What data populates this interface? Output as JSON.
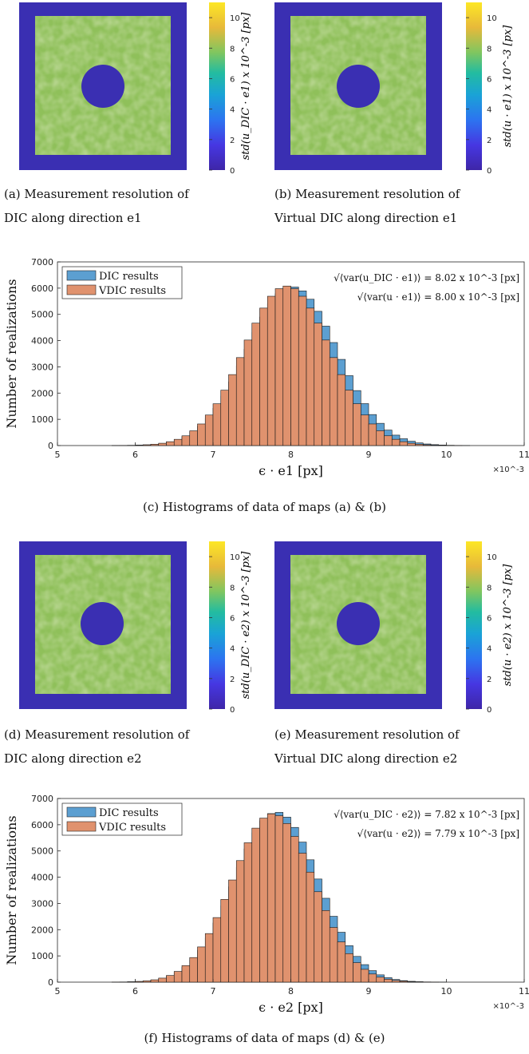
{
  "colors": {
    "border": "#3a2fb2",
    "hole": "#3a2fb2",
    "dic_bar": "#5c9fd1",
    "vdic_bar": "#e0926e",
    "bar_edge": "#1a1a1a",
    "colorbar_stops": [
      "#3e26a8",
      "#4637e2",
      "#2c74f0",
      "#1aa3d6",
      "#23bca0",
      "#7fc660",
      "#e7b93a",
      "#fde725"
    ]
  },
  "maps": [
    {
      "id": "a",
      "caption_line1": "(a)  Measurement  resolution  of",
      "caption_line2": "DIC along direction e1",
      "colorbar_label": "std(u_DIC · e1) x 10^-3 [px]",
      "colorbar_ticks": [
        "0",
        "2",
        "4",
        "6",
        "8",
        "10"
      ]
    },
    {
      "id": "b",
      "caption_line1": "(b)  Measurement  resolution  of",
      "caption_line2": "Virtual DIC along direction e1",
      "colorbar_label": "std(u · e1) x 10^-3 [px]",
      "colorbar_ticks": [
        "0",
        "2",
        "4",
        "6",
        "8",
        "10"
      ]
    },
    {
      "id": "d",
      "caption_line1": "(d)  Measurement  resolution  of",
      "caption_line2": "DIC along direction e2",
      "colorbar_label": "std(u_DIC · e2) x 10^-3 [px]",
      "colorbar_ticks": [
        "0",
        "2",
        "4",
        "6",
        "8",
        "10"
      ]
    },
    {
      "id": "e",
      "caption_line1": "(e)  Measurement  resolution  of",
      "caption_line2": "Virtual DIC along direction e2",
      "colorbar_label": "std(u · e2) x 10^-3 [px]",
      "colorbar_ticks": [
        "0",
        "2",
        "4",
        "6",
        "8",
        "10"
      ]
    }
  ],
  "chart_data": [
    {
      "type": "bar",
      "id": "c",
      "caption": "(c) Histograms of data of maps (a) & (b)",
      "xlabel": "ϵ · e1 [px]",
      "ylabel": "Number of realizations",
      "x_multiplier": "×10^-3",
      "xlim": [
        5,
        11
      ],
      "ylim": [
        0,
        7000
      ],
      "xticks": [
        "5",
        "6",
        "7",
        "8",
        "9",
        "10",
        "11"
      ],
      "yticks": [
        "0",
        "1000",
        "2000",
        "3000",
        "4000",
        "5000",
        "6000",
        "7000"
      ],
      "bin_width": 0.1,
      "legend_location": "top-left",
      "annotations": [
        "√⟨var(u_DIC · e1)⟩ = 8.02 x 10^-3 [px]",
        "√⟨var(u · e1)⟩ = 8.00 x 10^-3 [px]"
      ],
      "series": [
        {
          "name": "DIC results",
          "mean": 8.02,
          "sigma": 0.57,
          "peak": 6050
        },
        {
          "name": "VDIC results",
          "mean": 7.95,
          "sigma": 0.55,
          "peak": 6080
        }
      ]
    },
    {
      "type": "bar",
      "id": "f",
      "caption": "(f) Histograms of data of maps (d) & (e)",
      "xlabel": "ϵ · e2 [px]",
      "ylabel": "Number of realizations",
      "x_multiplier": "×10^-3",
      "xlim": [
        5,
        11
      ],
      "ylim": [
        0,
        7000
      ],
      "xticks": [
        "5",
        "6",
        "7",
        "8",
        "9",
        "10",
        "11"
      ],
      "yticks": [
        "0",
        "1000",
        "2000",
        "3000",
        "4000",
        "5000",
        "6000",
        "7000"
      ],
      "bin_width": 0.1,
      "legend_location": "top-left",
      "annotations": [
        "√⟨var(u_DIC · e2)⟩ = 7.82 x 10^-3 [px]",
        "√⟨var(u · e2)⟩ = 7.79 x 10^-3 [px]"
      ],
      "series": [
        {
          "name": "DIC results",
          "mean": 7.82,
          "sigma": 0.53,
          "peak": 6480
        },
        {
          "name": "VDIC results",
          "mean": 7.77,
          "sigma": 0.52,
          "peak": 6420
        }
      ]
    }
  ]
}
